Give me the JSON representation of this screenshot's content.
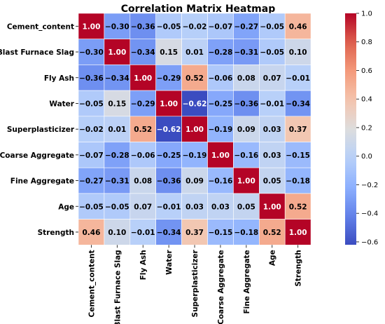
{
  "chart_data": {
    "type": "heatmap",
    "title": "Correlation Matrix Heatmap",
    "row_labels": [
      "Cement_content",
      "Blast Furnace Slag",
      "Fly Ash",
      "Water",
      "Superplasticizer",
      "Coarse Aggregate",
      "Fine Aggregate",
      "Age",
      "Strength"
    ],
    "col_labels": [
      "Cement_content",
      "Blast Furnace Slag",
      "Fly Ash",
      "Water",
      "Superplasticizer",
      "Coarse Aggregate",
      "Fine Aggregate",
      "Age",
      "Strength"
    ],
    "values": [
      [
        1.0,
        -0.3,
        -0.36,
        -0.05,
        -0.02,
        -0.07,
        -0.27,
        -0.05,
        0.46
      ],
      [
        -0.3,
        1.0,
        -0.34,
        0.15,
        0.01,
        -0.28,
        -0.31,
        -0.05,
        0.1
      ],
      [
        -0.36,
        -0.34,
        1.0,
        -0.29,
        0.52,
        -0.06,
        0.08,
        0.07,
        -0.01
      ],
      [
        -0.05,
        0.15,
        -0.29,
        1.0,
        -0.62,
        -0.25,
        -0.36,
        -0.01,
        -0.34
      ],
      [
        -0.02,
        0.01,
        0.52,
        -0.62,
        1.0,
        -0.19,
        0.09,
        0.03,
        0.37
      ],
      [
        -0.07,
        -0.28,
        -0.06,
        -0.25,
        -0.19,
        1.0,
        -0.16,
        0.03,
        -0.15
      ],
      [
        -0.27,
        -0.31,
        0.08,
        -0.36,
        0.09,
        -0.16,
        1.0,
        0.05,
        -0.18
      ],
      [
        -0.05,
        -0.05,
        0.07,
        -0.01,
        0.03,
        0.03,
        0.05,
        1.0,
        0.52
      ],
      [
        0.46,
        0.1,
        -0.01,
        -0.34,
        0.37,
        -0.15,
        -0.18,
        0.52,
        1.0
      ]
    ],
    "colormap": "coolwarm",
    "value_range": [
      -0.62,
      1.0
    ],
    "colorbar_ticks": [
      "1.0",
      "0.8",
      "0.6",
      "0.4",
      "0.2",
      "0.0",
      "−0.2",
      "−0.4",
      "−0.6"
    ],
    "colorbar_tick_values": [
      1.0,
      0.8,
      0.6,
      0.4,
      0.2,
      0.0,
      -0.2,
      -0.4,
      -0.6
    ],
    "value_format": "2 decimals",
    "colors": {
      "low": "#3b4cc0",
      "mid": "#dddddd",
      "high": "#b40426"
    }
  }
}
